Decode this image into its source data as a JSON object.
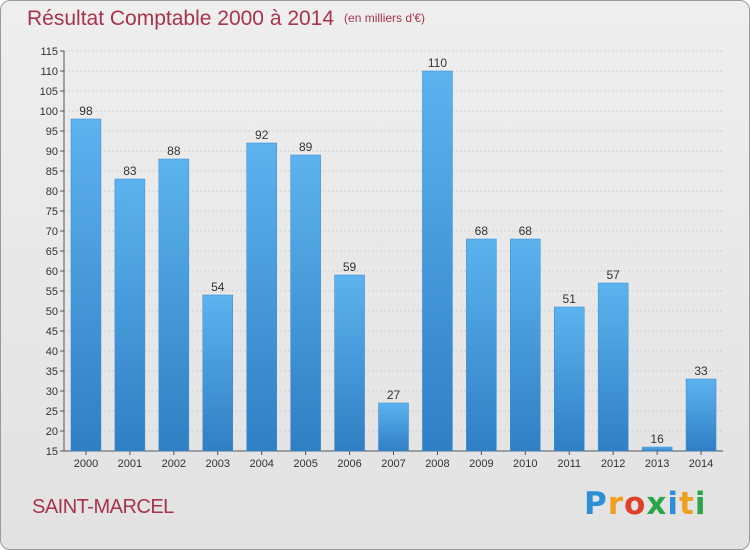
{
  "chart_data": {
    "type": "bar",
    "title": "Résultat Comptable 2000 à 2014",
    "unit_note": "(en milliers d'€)",
    "categories": [
      "2000",
      "2001",
      "2002",
      "2003",
      "2004",
      "2005",
      "2006",
      "2007",
      "2008",
      "2009",
      "2010",
      "2011",
      "2012",
      "2013",
      "2014"
    ],
    "values": [
      98,
      83,
      88,
      54,
      92,
      89,
      59,
      27,
      110,
      68,
      68,
      51,
      57,
      16,
      33
    ],
    "ylim": [
      15,
      115
    ],
    "yticks": [
      15,
      20,
      25,
      30,
      35,
      40,
      45,
      50,
      55,
      60,
      65,
      70,
      75,
      80,
      85,
      90,
      95,
      100,
      105,
      110,
      115
    ],
    "grid": true,
    "bar_color": "#4a9de0",
    "xlabel": "",
    "ylabel": ""
  },
  "commune": "SAINT-MARCEL",
  "logo": {
    "letters": [
      "P",
      "r",
      "o",
      "x",
      "i",
      "t",
      "i"
    ],
    "colors": [
      "#2f8fd6",
      "#f0a020",
      "#e0402a",
      "#2aa648",
      "#2f8fd6",
      "#f0a020",
      "#2aa648"
    ]
  },
  "colors": {
    "title": "#a8334e",
    "grid": "#cfcfcf"
  }
}
